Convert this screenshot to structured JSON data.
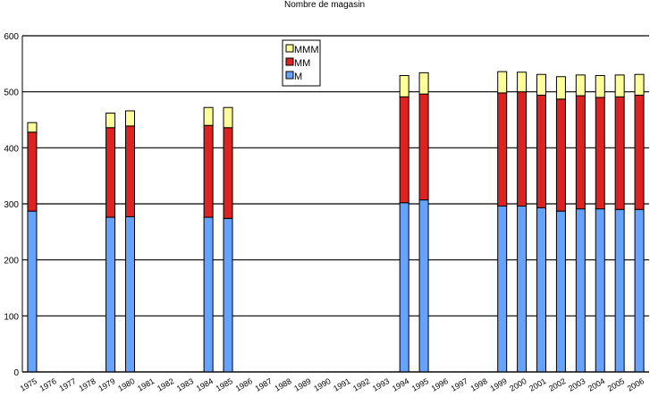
{
  "chart_data": {
    "type": "bar",
    "stacked": true,
    "title": "Nombre de magasin",
    "xlabel": "",
    "ylabel": "",
    "ylim": [
      0,
      600
    ],
    "yticks": [
      0,
      100,
      200,
      300,
      400,
      500,
      600
    ],
    "grid": true,
    "legend_position": "top-center",
    "categories": [
      "1975",
      "1976",
      "1977",
      "1978",
      "1979",
      "1980",
      "1981",
      "1982",
      "1983",
      "1984",
      "1985",
      "1986",
      "1987",
      "1988",
      "1989",
      "1990",
      "1991",
      "1992",
      "1993",
      "1994",
      "1995",
      "1996",
      "1997",
      "1998",
      "1999",
      "2000",
      "2001",
      "2002",
      "2003",
      "2004",
      "2005",
      "2006"
    ],
    "series": [
      {
        "name": "M",
        "color": "#66a3ff",
        "values": [
          287,
          0,
          0,
          0,
          276,
          277,
          0,
          0,
          0,
          276,
          274,
          0,
          0,
          0,
          0,
          0,
          0,
          0,
          0,
          302,
          307,
          0,
          0,
          0,
          296,
          296,
          293,
          287,
          291,
          291,
          290,
          290
        ]
      },
      {
        "name": "MM",
        "color": "#dd2222",
        "values": [
          141,
          0,
          0,
          0,
          160,
          162,
          0,
          0,
          0,
          164,
          162,
          0,
          0,
          0,
          0,
          0,
          0,
          0,
          0,
          189,
          189,
          0,
          0,
          0,
          202,
          204,
          201,
          200,
          202,
          199,
          201,
          204
        ]
      },
      {
        "name": "MMM",
        "color": "#ffff99",
        "values": [
          17,
          0,
          0,
          0,
          26,
          27,
          0,
          0,
          0,
          32,
          36,
          0,
          0,
          0,
          0,
          0,
          0,
          0,
          0,
          38,
          38,
          0,
          0,
          0,
          38,
          35,
          37,
          40,
          37,
          39,
          39,
          37
        ]
      }
    ]
  }
}
